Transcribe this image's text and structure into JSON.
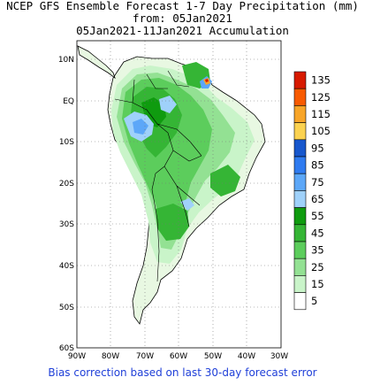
{
  "header": {
    "line1": "NCEP GFS Ensemble Forecast 1-7 Day Precipitation (mm)",
    "line2": "from: 05Jan2021",
    "line3": "05Jan2021-11Jan2021 Accumulation"
  },
  "map": {
    "lat_labels": [
      "10N",
      "EQ",
      "10S",
      "20S",
      "30S",
      "40S",
      "50S",
      "60S"
    ],
    "lon_labels": [
      "90W",
      "80W",
      "70W",
      "60W",
      "50W",
      "40W",
      "30W"
    ]
  },
  "legend": {
    "labels": [
      "135",
      "125",
      "115",
      "105",
      "95",
      "85",
      "75",
      "65",
      "55",
      "45",
      "35",
      "25",
      "15",
      "5"
    ],
    "colors": [
      "#d71a00",
      "#f85a00",
      "#f8a528",
      "#fbd250",
      "#1757cd",
      "#2f7bf0",
      "#5ca7f8",
      "#9fd1fa",
      "#0f9b0f",
      "#35b535",
      "#5ccd5c",
      "#93e193",
      "#c9f4c9",
      "#ffffff"
    ]
  },
  "footer": {
    "note": "Bias correction based on last 30-day forecast error"
  }
}
